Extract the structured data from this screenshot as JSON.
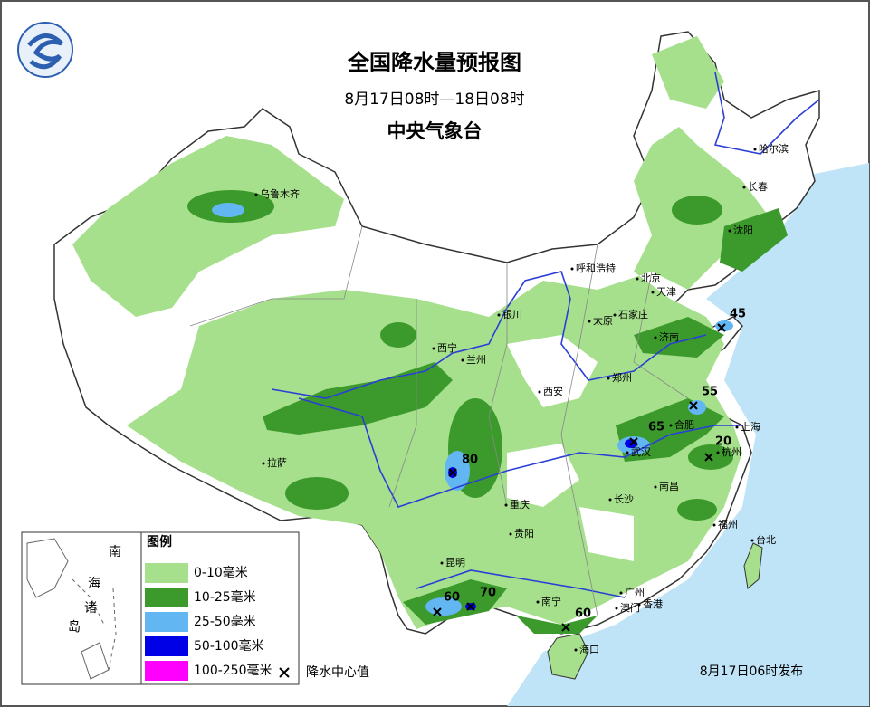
{
  "title": "全国降水量预报图",
  "subtitle": "8月17日08时—18日08时",
  "issuer": "中央气象台",
  "cities": [
    "乌鲁木齐",
    "哈尔滨",
    "长春",
    "沈阳",
    "呼和浩特",
    "北京",
    "天津",
    "银川",
    "石家庄",
    "太原",
    "济南",
    "西宁",
    "兰州",
    "郑州",
    "西安",
    "合肥",
    "上海",
    "武汉",
    "杭州",
    "拉萨",
    "重庆",
    "长沙",
    "南昌",
    "福州",
    "贵阳",
    "台北",
    "昆明",
    "南宁",
    "广州",
    "澳门",
    "香港",
    "海口"
  ],
  "precip_centers": [
    45,
    55,
    65,
    20,
    80,
    60,
    70,
    60
  ],
  "legend": {
    "title": "图例",
    "items": [
      {
        "label": "0-10毫米",
        "color": "#a6e08c"
      },
      {
        "label": "10-25毫米",
        "color": "#3b9a2b"
      },
      {
        "label": "25-50毫米",
        "color": "#62b6f2"
      },
      {
        "label": "50-100毫米",
        "color": "#0000e6"
      },
      {
        "label": "100-250毫米",
        "color": "#ff00ff"
      }
    ],
    "center_label": "降水中心值"
  },
  "inset": {
    "labels": [
      "南",
      "海",
      "诸",
      "岛"
    ]
  },
  "issued": "8月17日06时发布"
}
